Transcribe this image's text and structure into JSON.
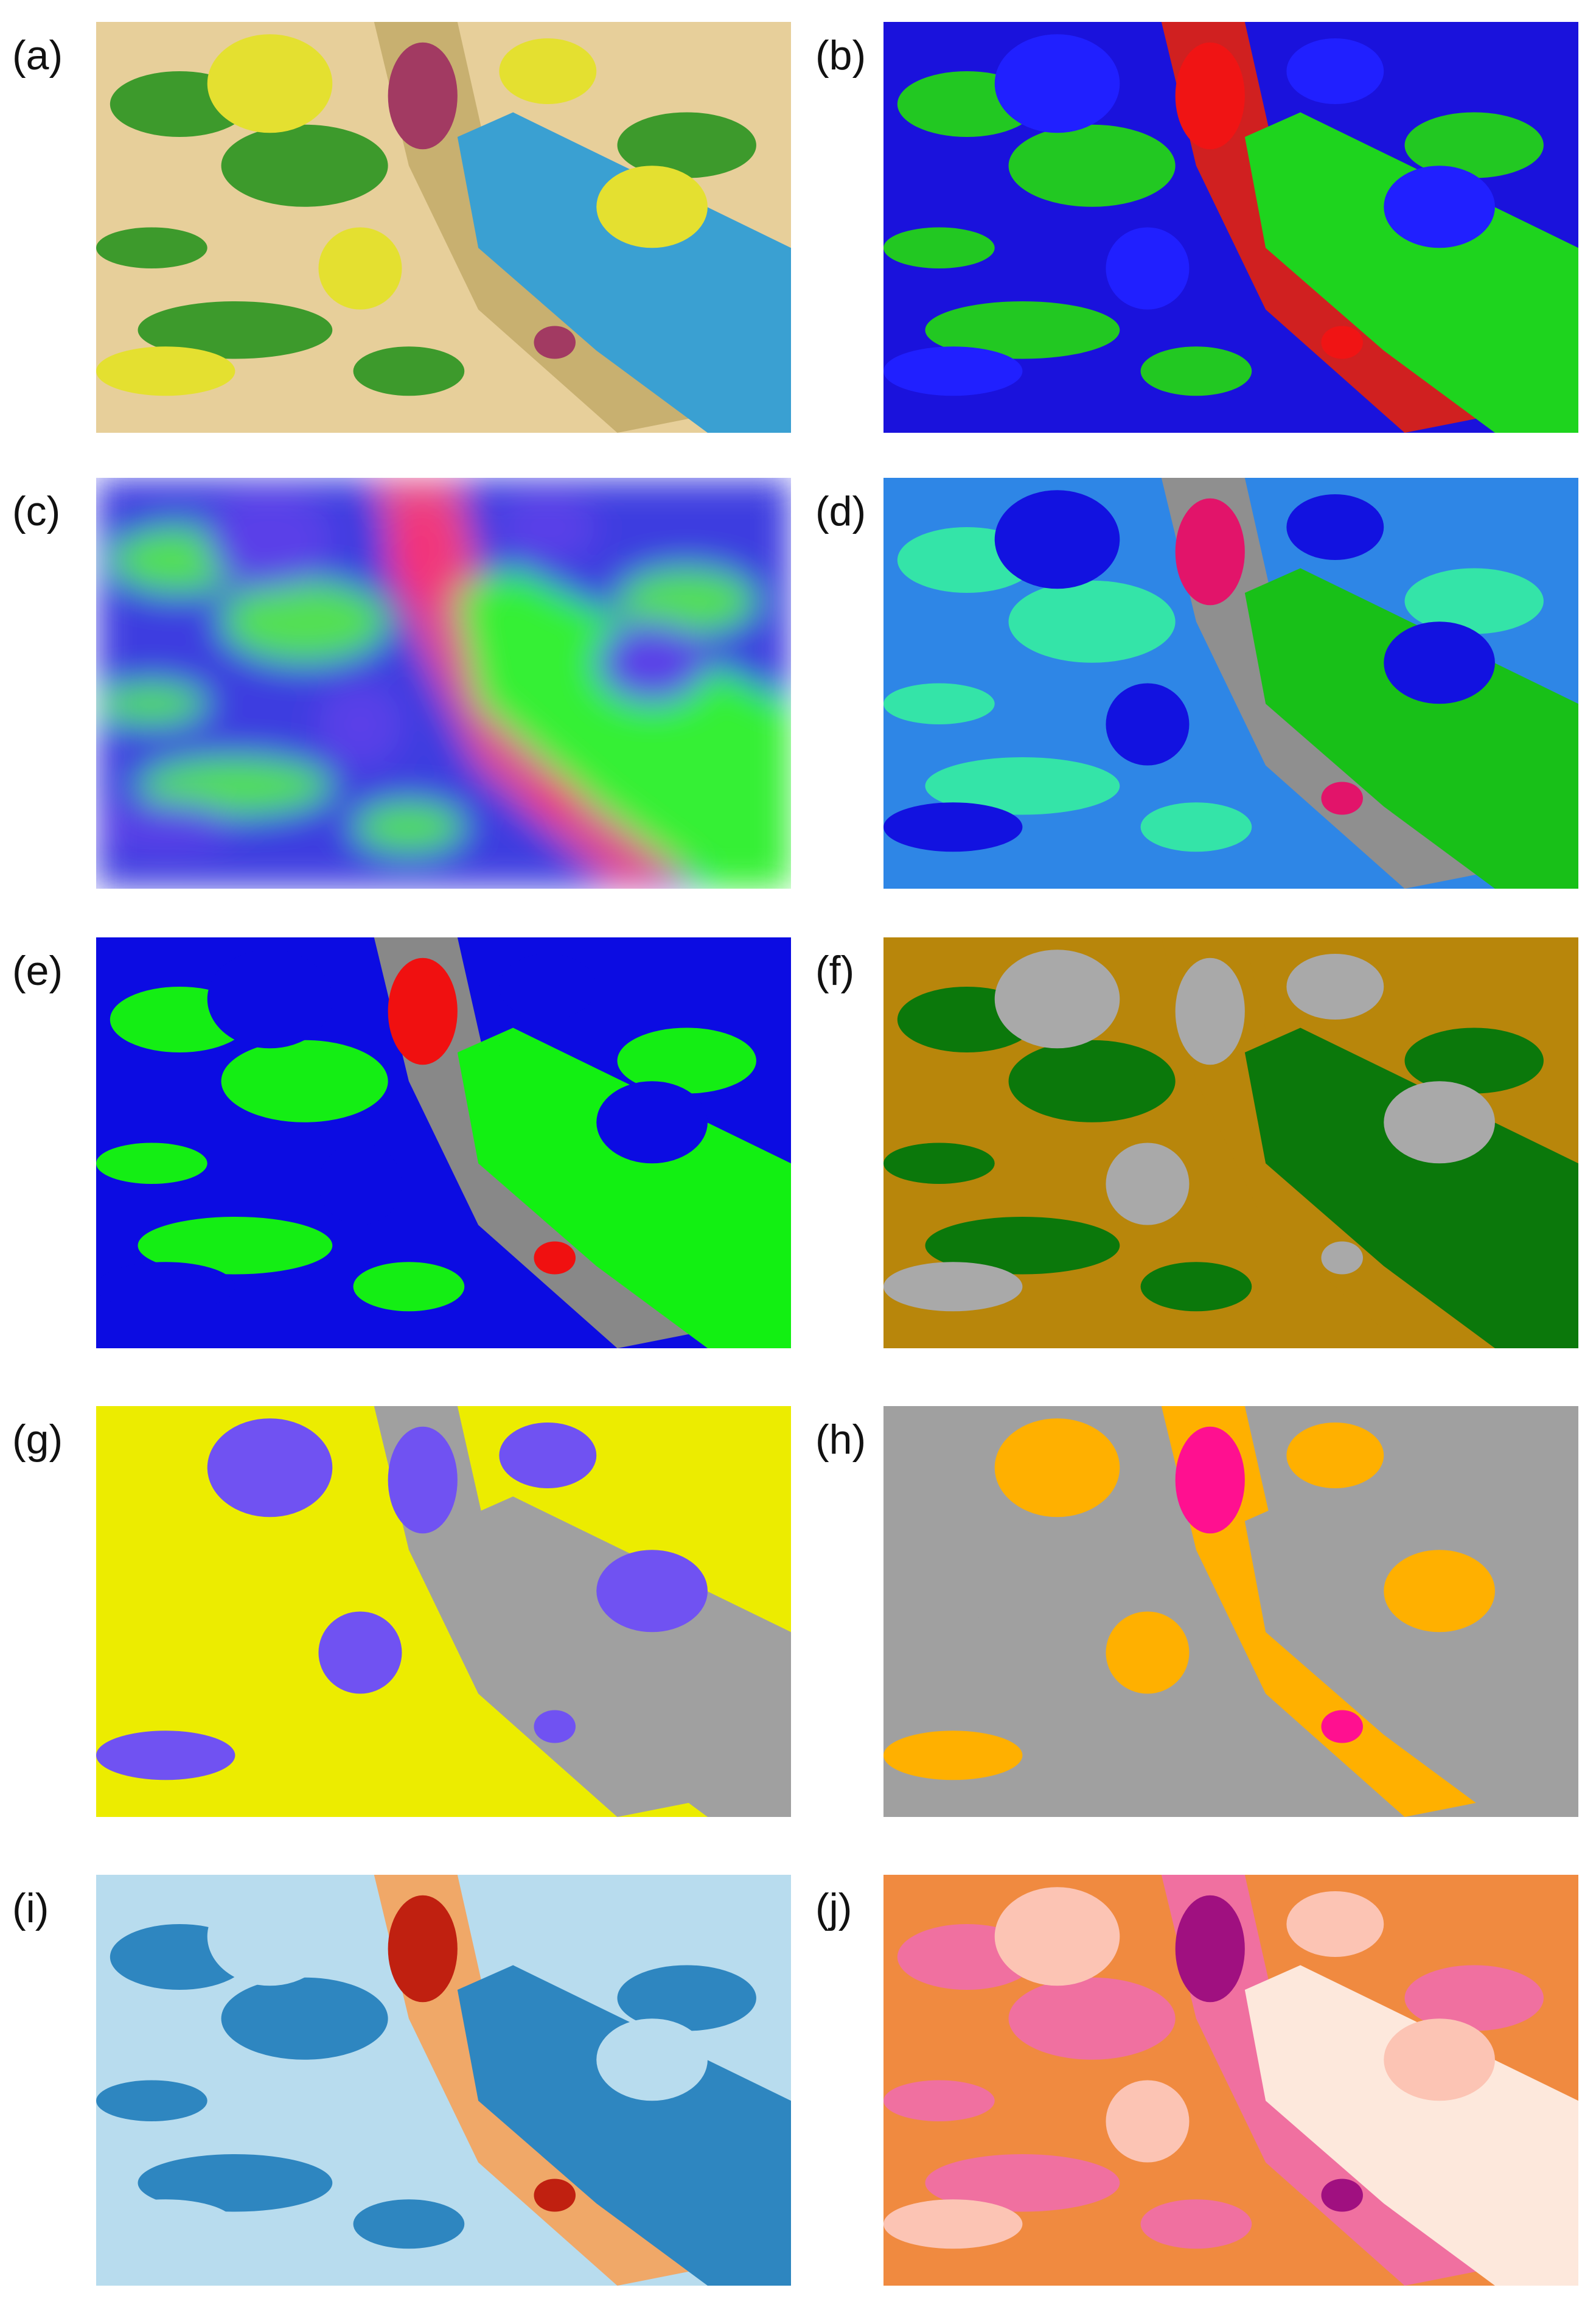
{
  "panels": [
    {
      "label": "(a)"
    },
    {
      "label": "(b)"
    },
    {
      "label": "(c)"
    },
    {
      "label": "(d)"
    },
    {
      "label": "(e)"
    },
    {
      "label": "(f)"
    },
    {
      "label": "(g)"
    },
    {
      "label": "(h)"
    },
    {
      "label": "(i)"
    },
    {
      "label": "(j)"
    }
  ]
}
